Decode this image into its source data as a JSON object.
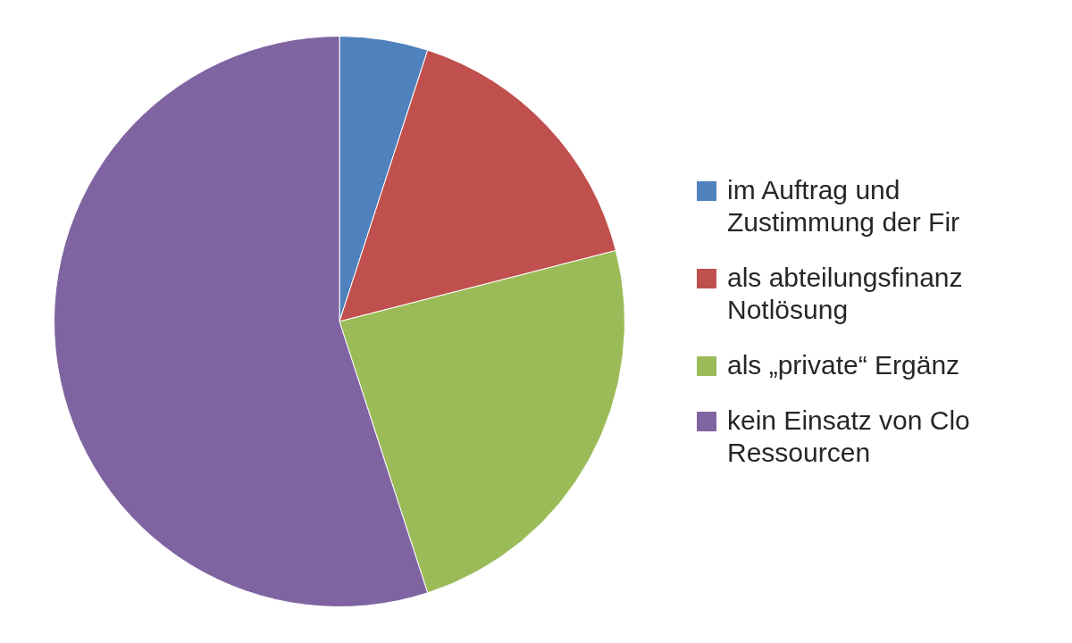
{
  "chart_data": {
    "type": "pie",
    "categories": [
      "im Auftrag und Zustimmung der Fir",
      "als abteilungsfinanz Notlösung",
      "als „private“ Ergänz",
      "kein Einsatz von Clo Ressourcen"
    ],
    "values": [
      5,
      16,
      24,
      55
    ],
    "colors": [
      "#4f81bd",
      "#c0504d",
      "#9bbb59",
      "#8064a2"
    ],
    "legend": "right"
  }
}
